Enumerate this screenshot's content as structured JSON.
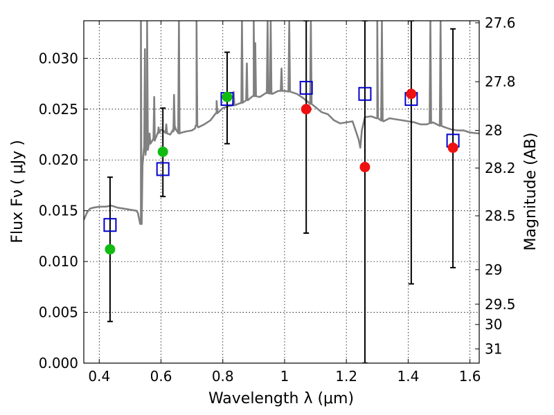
{
  "chart_data": {
    "type": "scatter",
    "xlabel": "Wavelength  λ (μm)",
    "ylabel": "Flux  Fν  ( μJy )",
    "ylabel2": "Magnitude (AB)",
    "xlim": [
      0.35,
      1.63
    ],
    "ylim": [
      0,
      0.0337
    ],
    "grid": true,
    "x_ticks": [
      0.4,
      0.6,
      0.8,
      1.0,
      1.2,
      1.4,
      1.6
    ],
    "x_tick_labels": [
      "0.4",
      "0.6",
      "0.8",
      "1",
      "1.2",
      "1.4",
      "1.6"
    ],
    "y_ticks": [
      0,
      0.005,
      0.01,
      0.015,
      0.02,
      0.025,
      0.03
    ],
    "y_tick_labels": [
      "0.000",
      "0.005",
      "0.010",
      "0.015",
      "0.020",
      "0.025",
      "0.030"
    ],
    "mag_ticks": [
      {
        "label": "27.6",
        "y": 0.0335
      },
      {
        "label": "27.8",
        "y": 0.0277
      },
      {
        "label": "28",
        "y": 0.0229
      },
      {
        "label": "28.2",
        "y": 0.0192
      },
      {
        "label": "28.5",
        "y": 0.0145
      },
      {
        "label": "29",
        "y": 0.0092
      },
      {
        "label": "29.5",
        "y": 0.0058
      },
      {
        "label": "30",
        "y": 0.0038
      },
      {
        "label": "31",
        "y": 0.0014
      }
    ],
    "series": [
      {
        "kind": "model_spectrum",
        "color": "#808080",
        "x": [
          0.35,
          0.36,
          0.37,
          0.38,
          0.4,
          0.42,
          0.44,
          0.46,
          0.48,
          0.5,
          0.52,
          0.525,
          0.535,
          0.537,
          0.54,
          0.545,
          0.55,
          0.555,
          0.56,
          0.57,
          0.575,
          0.58,
          0.585,
          0.59,
          0.6,
          0.61,
          0.62,
          0.63,
          0.64,
          0.645,
          0.65,
          0.655,
          0.66,
          0.68,
          0.7,
          0.71,
          0.715,
          0.72,
          0.74,
          0.76,
          0.78,
          0.8,
          0.82,
          0.84,
          0.86,
          0.88,
          0.9,
          0.92,
          0.94,
          0.96,
          0.98,
          1.0,
          1.02,
          1.04,
          1.06,
          1.08,
          1.1,
          1.12,
          1.14,
          1.16,
          1.18,
          1.2,
          1.22,
          1.24,
          1.245,
          1.25,
          1.26,
          1.28,
          1.3,
          1.32,
          1.34,
          1.36,
          1.38,
          1.4,
          1.42,
          1.44,
          1.46,
          1.48,
          1.5,
          1.52,
          1.54,
          1.56,
          1.58,
          1.6,
          1.63
        ],
        "y": [
          0.0141,
          0.0148,
          0.0152,
          0.0153,
          0.0154,
          0.0154,
          0.0155,
          0.0153,
          0.0152,
          0.0151,
          0.015,
          0.0148,
          0.0137,
          0.014,
          0.0195,
          0.0212,
          0.0205,
          0.021,
          0.0215,
          0.0218,
          0.0221,
          0.0219,
          0.0223,
          0.0226,
          0.023,
          0.0228,
          0.0226,
          0.0225,
          0.0228,
          0.0233,
          0.0229,
          0.0227,
          0.0226,
          0.0228,
          0.0229,
          0.0231,
          0.0234,
          0.0232,
          0.0235,
          0.0239,
          0.0246,
          0.0251,
          0.0253,
          0.0254,
          0.0256,
          0.0259,
          0.0263,
          0.0262,
          0.0266,
          0.0265,
          0.0268,
          0.0268,
          0.0267,
          0.0265,
          0.0261,
          0.0256,
          0.0252,
          0.0247,
          0.0245,
          0.0239,
          0.0236,
          0.0237,
          0.0238,
          0.022,
          0.0212,
          0.0229,
          0.0242,
          0.0243,
          0.0241,
          0.0238,
          0.0241,
          0.024,
          0.0239,
          0.0238,
          0.0237,
          0.0235,
          0.0235,
          0.0237,
          0.0234,
          0.0232,
          0.023,
          0.0229,
          0.0229,
          0.0227,
          0.0226
        ],
        "emission_lines": [
          {
            "x": 0.535,
            "peak": 0.0336
          },
          {
            "x": 0.548,
            "peak": 0.0309
          },
          {
            "x": 0.555,
            "peak": 0.0336
          },
          {
            "x": 0.563,
            "peak": 0.0226
          },
          {
            "x": 0.578,
            "peak": 0.0262
          },
          {
            "x": 0.592,
            "peak": 0.0232
          },
          {
            "x": 0.617,
            "peak": 0.0235
          },
          {
            "x": 0.642,
            "peak": 0.0264
          },
          {
            "x": 0.658,
            "peak": 0.0336
          },
          {
            "x": 0.715,
            "peak": 0.0336
          },
          {
            "x": 0.78,
            "peak": 0.0258
          },
          {
            "x": 0.835,
            "peak": 0.0267
          },
          {
            "x": 0.862,
            "peak": 0.0336
          },
          {
            "x": 0.878,
            "peak": 0.0295
          },
          {
            "x": 0.9,
            "peak": 0.0336
          },
          {
            "x": 0.905,
            "peak": 0.0315
          },
          {
            "x": 0.945,
            "peak": 0.0336
          },
          {
            "x": 0.955,
            "peak": 0.0336
          },
          {
            "x": 0.99,
            "peak": 0.029
          },
          {
            "x": 1.015,
            "peak": 0.0336
          },
          {
            "x": 1.085,
            "peak": 0.0336
          },
          {
            "x": 1.3,
            "peak": 0.0336
          },
          {
            "x": 1.315,
            "peak": 0.0336
          },
          {
            "x": 1.472,
            "peak": 0.0336
          },
          {
            "x": 1.505,
            "peak": 0.0336
          }
        ]
      },
      {
        "kind": "model_photometry",
        "marker": "open-square",
        "color": "#0000cc",
        "points": [
          {
            "x": 0.435,
            "y": 0.0136
          },
          {
            "x": 0.606,
            "y": 0.0191
          },
          {
            "x": 0.814,
            "y": 0.026
          },
          {
            "x": 1.07,
            "y": 0.0271
          },
          {
            "x": 1.26,
            "y": 0.0265
          },
          {
            "x": 1.41,
            "y": 0.026
          },
          {
            "x": 1.545,
            "y": 0.0219
          }
        ]
      },
      {
        "kind": "detected",
        "marker": "filled-circle",
        "color": "#11bb11",
        "points": [
          {
            "x": 0.435,
            "y": 0.0112,
            "err_lo": 0.0041,
            "err_hi": 0.0183
          },
          {
            "x": 0.606,
            "y": 0.0208,
            "err_lo": 0.0164,
            "err_hi": 0.0251
          },
          {
            "x": 0.814,
            "y": 0.0262,
            "err_lo": 0.0216,
            "err_hi": 0.0306
          }
        ]
      },
      {
        "kind": "undetected",
        "marker": "filled-circle",
        "color": "#ee1111",
        "points": [
          {
            "x": 1.07,
            "y": 0.025,
            "err_lo": 0.0128,
            "err_hi": 0.0337
          },
          {
            "x": 1.26,
            "y": 0.0193,
            "err_lo": 0.0,
            "err_hi": 0.0337
          },
          {
            "x": 1.41,
            "y": 0.0265,
            "err_lo": 0.0078,
            "err_hi": 0.0337
          },
          {
            "x": 1.545,
            "y": 0.0212,
            "err_lo": 0.0094,
            "err_hi": 0.0329
          }
        ]
      }
    ]
  }
}
